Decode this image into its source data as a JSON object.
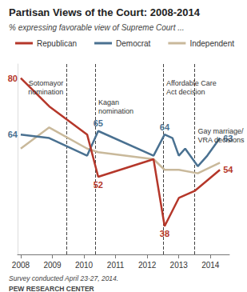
{
  "chart_data": {
    "type": "line",
    "title": "Partisan Views of the Court: 2008-2014",
    "subtitle": "% expressing favorable view of Supreme Court ...",
    "notes": [
      "Survey conducted April 23-27, 2014.",
      "PEW RESEARCH CENTER"
    ],
    "xlim": [
      2007.9,
      2014.6
    ],
    "xticks": [
      2008,
      2009,
      2010,
      2011,
      2012,
      2013,
      2014
    ],
    "ylim": [
      30,
      84
    ],
    "yticks": [],
    "tick_labels": "x",
    "grid": false,
    "legend": "top-left",
    "data_labels": true,
    "series": [
      {
        "name": "Republican",
        "color": "#b5372a",
        "x": [
          2008.0,
          2008.9,
          2010.1,
          2010.45,
          2012.2,
          2012.55,
          2013.0,
          2013.5,
          2013.9,
          2014.3
        ],
        "values": [
          80,
          72,
          64,
          52,
          57,
          38,
          46,
          48,
          51,
          54
        ],
        "value_labels": [
          "80",
          null,
          null,
          "52",
          null,
          "38",
          null,
          null,
          null,
          "54"
        ]
      },
      {
        "name": "Democrat",
        "color": "#4a7191",
        "x": [
          2008.0,
          2008.9,
          2010.1,
          2010.45,
          2012.2,
          2012.55,
          2012.8,
          2013.0,
          2013.2,
          2013.6,
          2013.9,
          2014.3
        ],
        "values": [
          64,
          63,
          58,
          65,
          58,
          64,
          63,
          58,
          60,
          55,
          58,
          63
        ],
        "value_labels": [
          "64",
          null,
          null,
          "65",
          null,
          "64",
          null,
          null,
          null,
          null,
          null,
          "63"
        ]
      },
      {
        "name": "Independent",
        "color": "#c9b99b",
        "x": [
          2008.0,
          2008.9,
          2010.1,
          2010.45,
          2012.2,
          2012.55,
          2013.0,
          2013.6,
          2014.3
        ],
        "values": [
          60,
          66,
          60,
          59,
          57,
          54,
          54,
          53,
          56
        ]
      }
    ],
    "annotations": [
      {
        "x": 2009.45,
        "label": "Sotomayor\nnomination"
      },
      {
        "x": 2010.35,
        "label": "Kagan\nnomination"
      },
      {
        "x": 2012.5,
        "label": "Affordable Care\nAct decision"
      },
      {
        "x": 2013.5,
        "label": "Gay marriage/\nVRA decisions"
      }
    ]
  }
}
